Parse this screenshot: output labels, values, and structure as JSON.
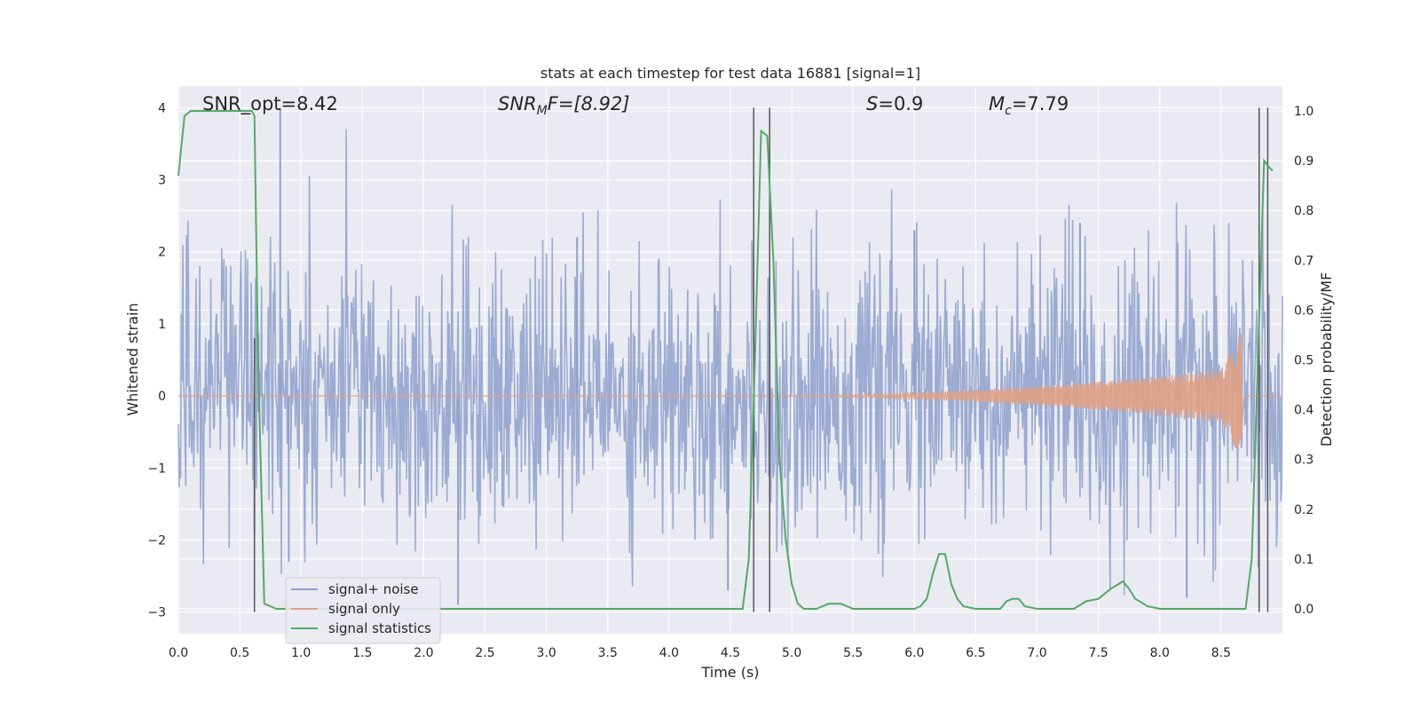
{
  "chart_data": {
    "type": "line",
    "title": "stats at each timestep for test data 16881 [signal=1]",
    "xlabel": "Time (s)",
    "ylabel": "Whitened strain",
    "y2label": "Detection probability/MF",
    "xlim": [
      0,
      9
    ],
    "ylim": [
      -3.3,
      4.3
    ],
    "y2lim": [
      -0.05,
      1.05
    ],
    "xticks": [
      0.0,
      0.5,
      1.0,
      1.5,
      2.0,
      2.5,
      3.0,
      3.5,
      4.0,
      4.5,
      5.0,
      5.5,
      6.0,
      6.5,
      7.0,
      7.5,
      8.0,
      8.5
    ],
    "xtick_labels": [
      "0.0",
      "0.5",
      "1.0",
      "1.5",
      "2.0",
      "2.5",
      "3.0",
      "3.5",
      "4.0",
      "4.5",
      "5.0",
      "5.5",
      "6.0",
      "6.5",
      "7.0",
      "7.5",
      "8.0",
      "8.5"
    ],
    "yticks": [
      -3,
      -2,
      -1,
      0,
      1,
      2,
      3,
      4
    ],
    "ytick_labels": [
      "−3",
      "−2",
      "−1",
      "0",
      "1",
      "2",
      "3",
      "4"
    ],
    "y2ticks": [
      0.0,
      0.1,
      0.2,
      0.3,
      0.4,
      0.5,
      0.6,
      0.7,
      0.8,
      0.9,
      1.0
    ],
    "y2tick_labels": [
      "0.0",
      "0.1",
      "0.2",
      "0.3",
      "0.4",
      "0.5",
      "0.6",
      "0.7",
      "0.8",
      "0.9",
      "1.0"
    ],
    "grid": true,
    "legend_position": "lower-left",
    "series": [
      {
        "name": "signal+ noise",
        "color": "#8da0cb",
        "description_of_values": "whitened noisy strain, dense samples",
        "approx_extent": [
          -2.9,
          4.0
        ],
        "spikes": [
          [
            0.62,
            -1.9
          ],
          [
            0.83,
            4.0
          ],
          [
            0.9,
            -2.3
          ],
          [
            2.28,
            -2.9
          ],
          [
            4.48,
            -2.7
          ],
          [
            8.22,
            -2.8
          ],
          [
            7.35,
            2.4
          ],
          [
            6.0,
            2.3
          ],
          [
            3.25,
            2.2
          ]
        ]
      },
      {
        "name": "signal only",
        "color": "#e0a084",
        "description_of_values": "chirp, amplitude growing from 0 near t=4.5 to ~0.9 at t=8.67",
        "chirp_start": 4.5,
        "chirp_end": 8.67,
        "peak_amplitude": 0.9
      },
      {
        "name": "signal statistics",
        "color": "#55a868",
        "axis": "right",
        "x": [
          0.0,
          0.05,
          0.1,
          0.3,
          0.5,
          0.6,
          0.62,
          0.65,
          0.7,
          0.8,
          1.0,
          2.0,
          3.0,
          4.0,
          4.5,
          4.6,
          4.65,
          4.7,
          4.75,
          4.8,
          4.85,
          4.9,
          4.95,
          5.0,
          5.05,
          5.1,
          5.2,
          5.3,
          5.4,
          5.5,
          5.7,
          5.9,
          6.0,
          6.05,
          6.1,
          6.15,
          6.2,
          6.25,
          6.3,
          6.35,
          6.4,
          6.5,
          6.6,
          6.7,
          6.75,
          6.8,
          6.85,
          6.9,
          7.0,
          7.2,
          7.3,
          7.4,
          7.5,
          7.6,
          7.7,
          7.75,
          7.8,
          7.9,
          8.0,
          8.3,
          8.6,
          8.7,
          8.75,
          8.8,
          8.85,
          8.88,
          8.92
        ],
        "values": [
          0.87,
          0.99,
          1.0,
          1.0,
          1.0,
          1.0,
          0.99,
          0.5,
          0.01,
          0.0,
          0.0,
          0.0,
          0.0,
          0.0,
          0.0,
          0.0,
          0.1,
          0.5,
          0.96,
          0.95,
          0.7,
          0.3,
          0.14,
          0.05,
          0.01,
          0.0,
          0.0,
          0.01,
          0.01,
          0.0,
          0.0,
          0.0,
          0.0,
          0.005,
          0.02,
          0.07,
          0.11,
          0.11,
          0.05,
          0.02,
          0.005,
          0.0,
          0.0,
          0.0,
          0.015,
          0.02,
          0.02,
          0.005,
          0.0,
          0.0,
          0.0,
          0.015,
          0.02,
          0.04,
          0.055,
          0.04,
          0.02,
          0.005,
          0.0,
          0.0,
          0.0,
          0.0,
          0.1,
          0.5,
          0.9,
          0.89,
          0.88
        ]
      }
    ],
    "vlines": [
      {
        "x": 0.62,
        "y_from": -3.0,
        "y_to": 0.8
      },
      {
        "x": 4.69,
        "y_from": -3.0,
        "y_to": 4.0
      },
      {
        "x": 4.82,
        "y_from": -3.0,
        "y_to": 4.0
      },
      {
        "x": 8.81,
        "y_from": -3.0,
        "y_to": 4.0
      },
      {
        "x": 8.88,
        "y_from": -3.0,
        "y_to": 4.0
      }
    ],
    "annotations": [
      {
        "text": "SNR_opt=8.42",
        "x": 0.2
      },
      {
        "html": "SNR<tspan baseline-shift='sub' font-size='14'>M</tspan>F=[8.92]",
        "x": 2.6,
        "italic_prefix": true
      },
      {
        "html": "S=0.9",
        "x": 5.6
      },
      {
        "html": "M<tspan baseline-shift='sub' font-size='14'>c</tspan>=7.79",
        "x": 6.6
      }
    ]
  },
  "labels": {
    "annot1": "SNR_opt=8.42",
    "annot2_a": "SNR",
    "annot2_sub": "M",
    "annot2_b": "F=[8.92]",
    "annot3_a": "S",
    "annot3_b": "=0.9",
    "annot4_a": "M",
    "annot4_sub": "c",
    "annot4_b": "=7.79"
  }
}
